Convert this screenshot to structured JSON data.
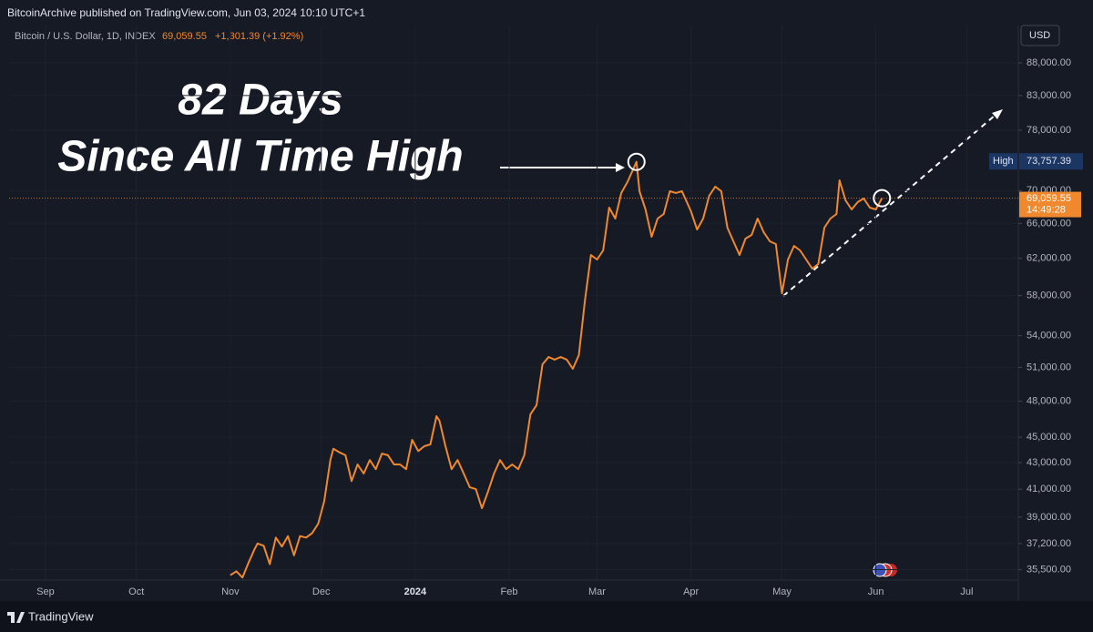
{
  "chart_data": {
    "type": "line",
    "published": "BitcoinArchive published on TradingView.com, Jun 03, 2024 10:10 UTC+1",
    "change": "+1,301.39 (+1.92%)",
    "currency": "USD",
    "brand": "TradingView",
    "annotations": [
      "82 Days",
      "Since All Time High"
    ],
    "log_scale": true,
    "grid": true,
    "high_label": "High",
    "high": {
      "value": 73757.39,
      "label": "73,757.39"
    },
    "last_price": {
      "value": 69059.55,
      "label": "69,059.55"
    },
    "countdown": "14:49:28",
    "x": [
      "2023-11-01",
      "2023-11-03",
      "2023-11-05",
      "2023-11-07",
      "2023-11-09",
      "2023-11-10",
      "2023-11-12",
      "2023-11-14",
      "2023-11-16",
      "2023-11-18",
      "2023-11-20",
      "2023-11-22",
      "2023-11-24",
      "2023-11-26",
      "2023-11-28",
      "2023-11-30",
      "2023-12-02",
      "2023-12-04",
      "2023-12-05",
      "2023-12-07",
      "2023-12-09",
      "2023-12-11",
      "2023-12-13",
      "2023-12-15",
      "2023-12-17",
      "2023-12-19",
      "2023-12-21",
      "2023-12-23",
      "2023-12-25",
      "2023-12-27",
      "2023-12-29",
      "2023-12-31",
      "2024-01-02",
      "2024-01-04",
      "2024-01-06",
      "2024-01-08",
      "2024-01-09",
      "2024-01-11",
      "2024-01-13",
      "2024-01-15",
      "2024-01-17",
      "2024-01-19",
      "2024-01-21",
      "2024-01-23",
      "2024-01-25",
      "2024-01-27",
      "2024-01-29",
      "2024-01-31",
      "2024-02-02",
      "2024-02-04",
      "2024-02-06",
      "2024-02-08",
      "2024-02-10",
      "2024-02-12",
      "2024-02-14",
      "2024-02-16",
      "2024-02-18",
      "2024-02-20",
      "2024-02-22",
      "2024-02-24",
      "2024-02-26",
      "2024-02-28",
      "2024-03-01",
      "2024-03-03",
      "2024-03-05",
      "2024-03-07",
      "2024-03-09",
      "2024-03-11",
      "2024-03-14",
      "2024-03-15",
      "2024-03-17",
      "2024-03-19",
      "2024-03-21",
      "2024-03-23",
      "2024-03-25",
      "2024-03-27",
      "2024-03-29",
      "2024-04-01",
      "2024-04-03",
      "2024-04-05",
      "2024-04-07",
      "2024-04-09",
      "2024-04-11",
      "2024-04-13",
      "2024-04-15",
      "2024-04-17",
      "2024-04-19",
      "2024-04-21",
      "2024-04-23",
      "2024-04-25",
      "2024-04-27",
      "2024-04-29",
      "2024-05-01",
      "2024-05-03",
      "2024-05-05",
      "2024-05-07",
      "2024-05-09",
      "2024-05-11",
      "2024-05-13",
      "2024-05-15",
      "2024-05-17",
      "2024-05-19",
      "2024-05-20",
      "2024-05-22",
      "2024-05-24",
      "2024-05-26",
      "2024-05-28",
      "2024-05-30",
      "2024-06-01",
      "2024-06-03"
    ],
    "series": [
      {
        "name": "Bitcoin / U.S. Dollar, 1D, INDEX",
        "color": "#f0882d",
        "values": [
          35150,
          35400,
          35000,
          35950,
          36830,
          37200,
          37050,
          35850,
          37600,
          37000,
          37700,
          36420,
          37700,
          37600,
          37900,
          38550,
          40150,
          43200,
          44080,
          43800,
          43570,
          41600,
          42860,
          42170,
          43200,
          42500,
          43700,
          43570,
          42860,
          42860,
          42500,
          44790,
          43900,
          44280,
          44430,
          46730,
          46350,
          44280,
          42500,
          43200,
          42170,
          41140,
          41010,
          39630,
          40810,
          42170,
          43200,
          42500,
          42860,
          42500,
          43570,
          46880,
          47650,
          51280,
          51960,
          51710,
          51960,
          51710,
          50870,
          52130,
          57490,
          62370,
          61870,
          62890,
          67900,
          66580,
          69700,
          71070,
          73700,
          69920,
          67680,
          64440,
          66580,
          67120,
          69920,
          69700,
          69920,
          67450,
          65280,
          66580,
          69350,
          70500,
          69920,
          65500,
          63920,
          62370,
          64230,
          64650,
          66580,
          64960,
          63920,
          63610,
          58230,
          61870,
          63400,
          62890,
          61870,
          60870,
          61370,
          65500,
          66580,
          67120,
          71300,
          68790,
          67680,
          68570,
          69010,
          67900,
          67680,
          69059.55
        ]
      }
    ],
    "xlim": [
      "2023-08-20",
      "2024-07-18"
    ],
    "xticks": [
      {
        "value": "2023-09-01",
        "label": "Sep"
      },
      {
        "value": "2023-10-01",
        "label": "Oct"
      },
      {
        "value": "2023-11-01",
        "label": "Nov"
      },
      {
        "value": "2023-12-01",
        "label": "Dec"
      },
      {
        "value": "2024-01-01",
        "label": "2024"
      },
      {
        "value": "2024-02-01",
        "label": "Feb"
      },
      {
        "value": "2024-03-01",
        "label": "Mar"
      },
      {
        "value": "2024-04-01",
        "label": "Apr"
      },
      {
        "value": "2024-05-01",
        "label": "May"
      },
      {
        "value": "2024-06-01",
        "label": "Jun"
      },
      {
        "value": "2024-07-01",
        "label": "Jul"
      }
    ],
    "ylim": [
      34870,
      93780
    ],
    "yticks": [
      {
        "value": 35500,
        "label": "35,500.00"
      },
      {
        "value": 37200,
        "label": "37,200.00"
      },
      {
        "value": 39000,
        "label": "39,000.00"
      },
      {
        "value": 41000,
        "label": "41,000.00"
      },
      {
        "value": 43000,
        "label": "43,000.00"
      },
      {
        "value": 45000,
        "label": "45,000.00"
      },
      {
        "value": 48000,
        "label": "48,000.00"
      },
      {
        "value": 51000,
        "label": "51,000.00"
      },
      {
        "value": 54000,
        "label": "54,000.00"
      },
      {
        "value": 58000,
        "label": "58,000.00"
      },
      {
        "value": 62000,
        "label": "62,000.00"
      },
      {
        "value": 66000,
        "label": "66,000.00"
      },
      {
        "value": 70000,
        "label": "70,000.00"
      },
      {
        "value": 78000,
        "label": "78,000.00"
      },
      {
        "value": 83000,
        "label": "83,000.00"
      },
      {
        "value": 88000,
        "label": "88,000.00"
      }
    ]
  }
}
